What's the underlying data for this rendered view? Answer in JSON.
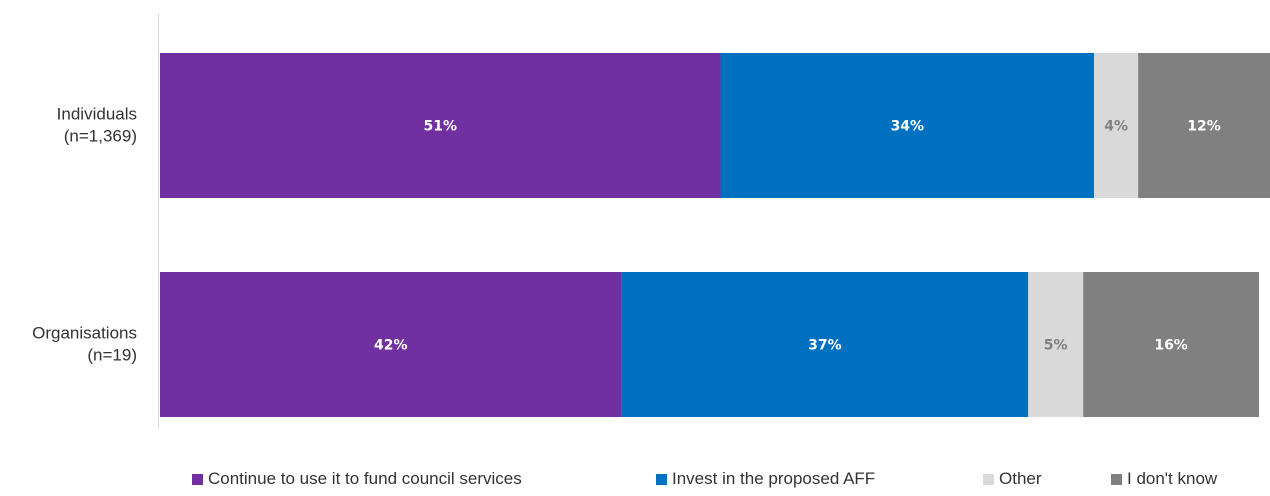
{
  "chart_data": {
    "type": "bar",
    "orientation": "horizontal",
    "stacked": true,
    "categories": [
      {
        "label": "Individuals",
        "sublabel": "(n=1,369)"
      },
      {
        "label": "Organisations",
        "sublabel": "(n=19)"
      }
    ],
    "series": [
      {
        "name": "Continue to use it to fund council services",
        "color": "#7030a0",
        "label_color": "#ffffff",
        "values": [
          51,
          42
        ]
      },
      {
        "name": "Invest in the proposed AFF",
        "color": "#0070c0",
        "label_color": "#ffffff",
        "values": [
          34,
          37
        ]
      },
      {
        "name": "Other",
        "color": "#d9d9d9",
        "label_color": "#808080",
        "values": [
          4,
          5
        ]
      },
      {
        "name": "I don't know",
        "color": "#808080",
        "label_color": "#ffffff",
        "values": [
          12,
          16
        ]
      }
    ],
    "value_suffix": "%",
    "xlim": [
      0,
      101
    ],
    "legend_position": "bottom",
    "grid": false
  }
}
